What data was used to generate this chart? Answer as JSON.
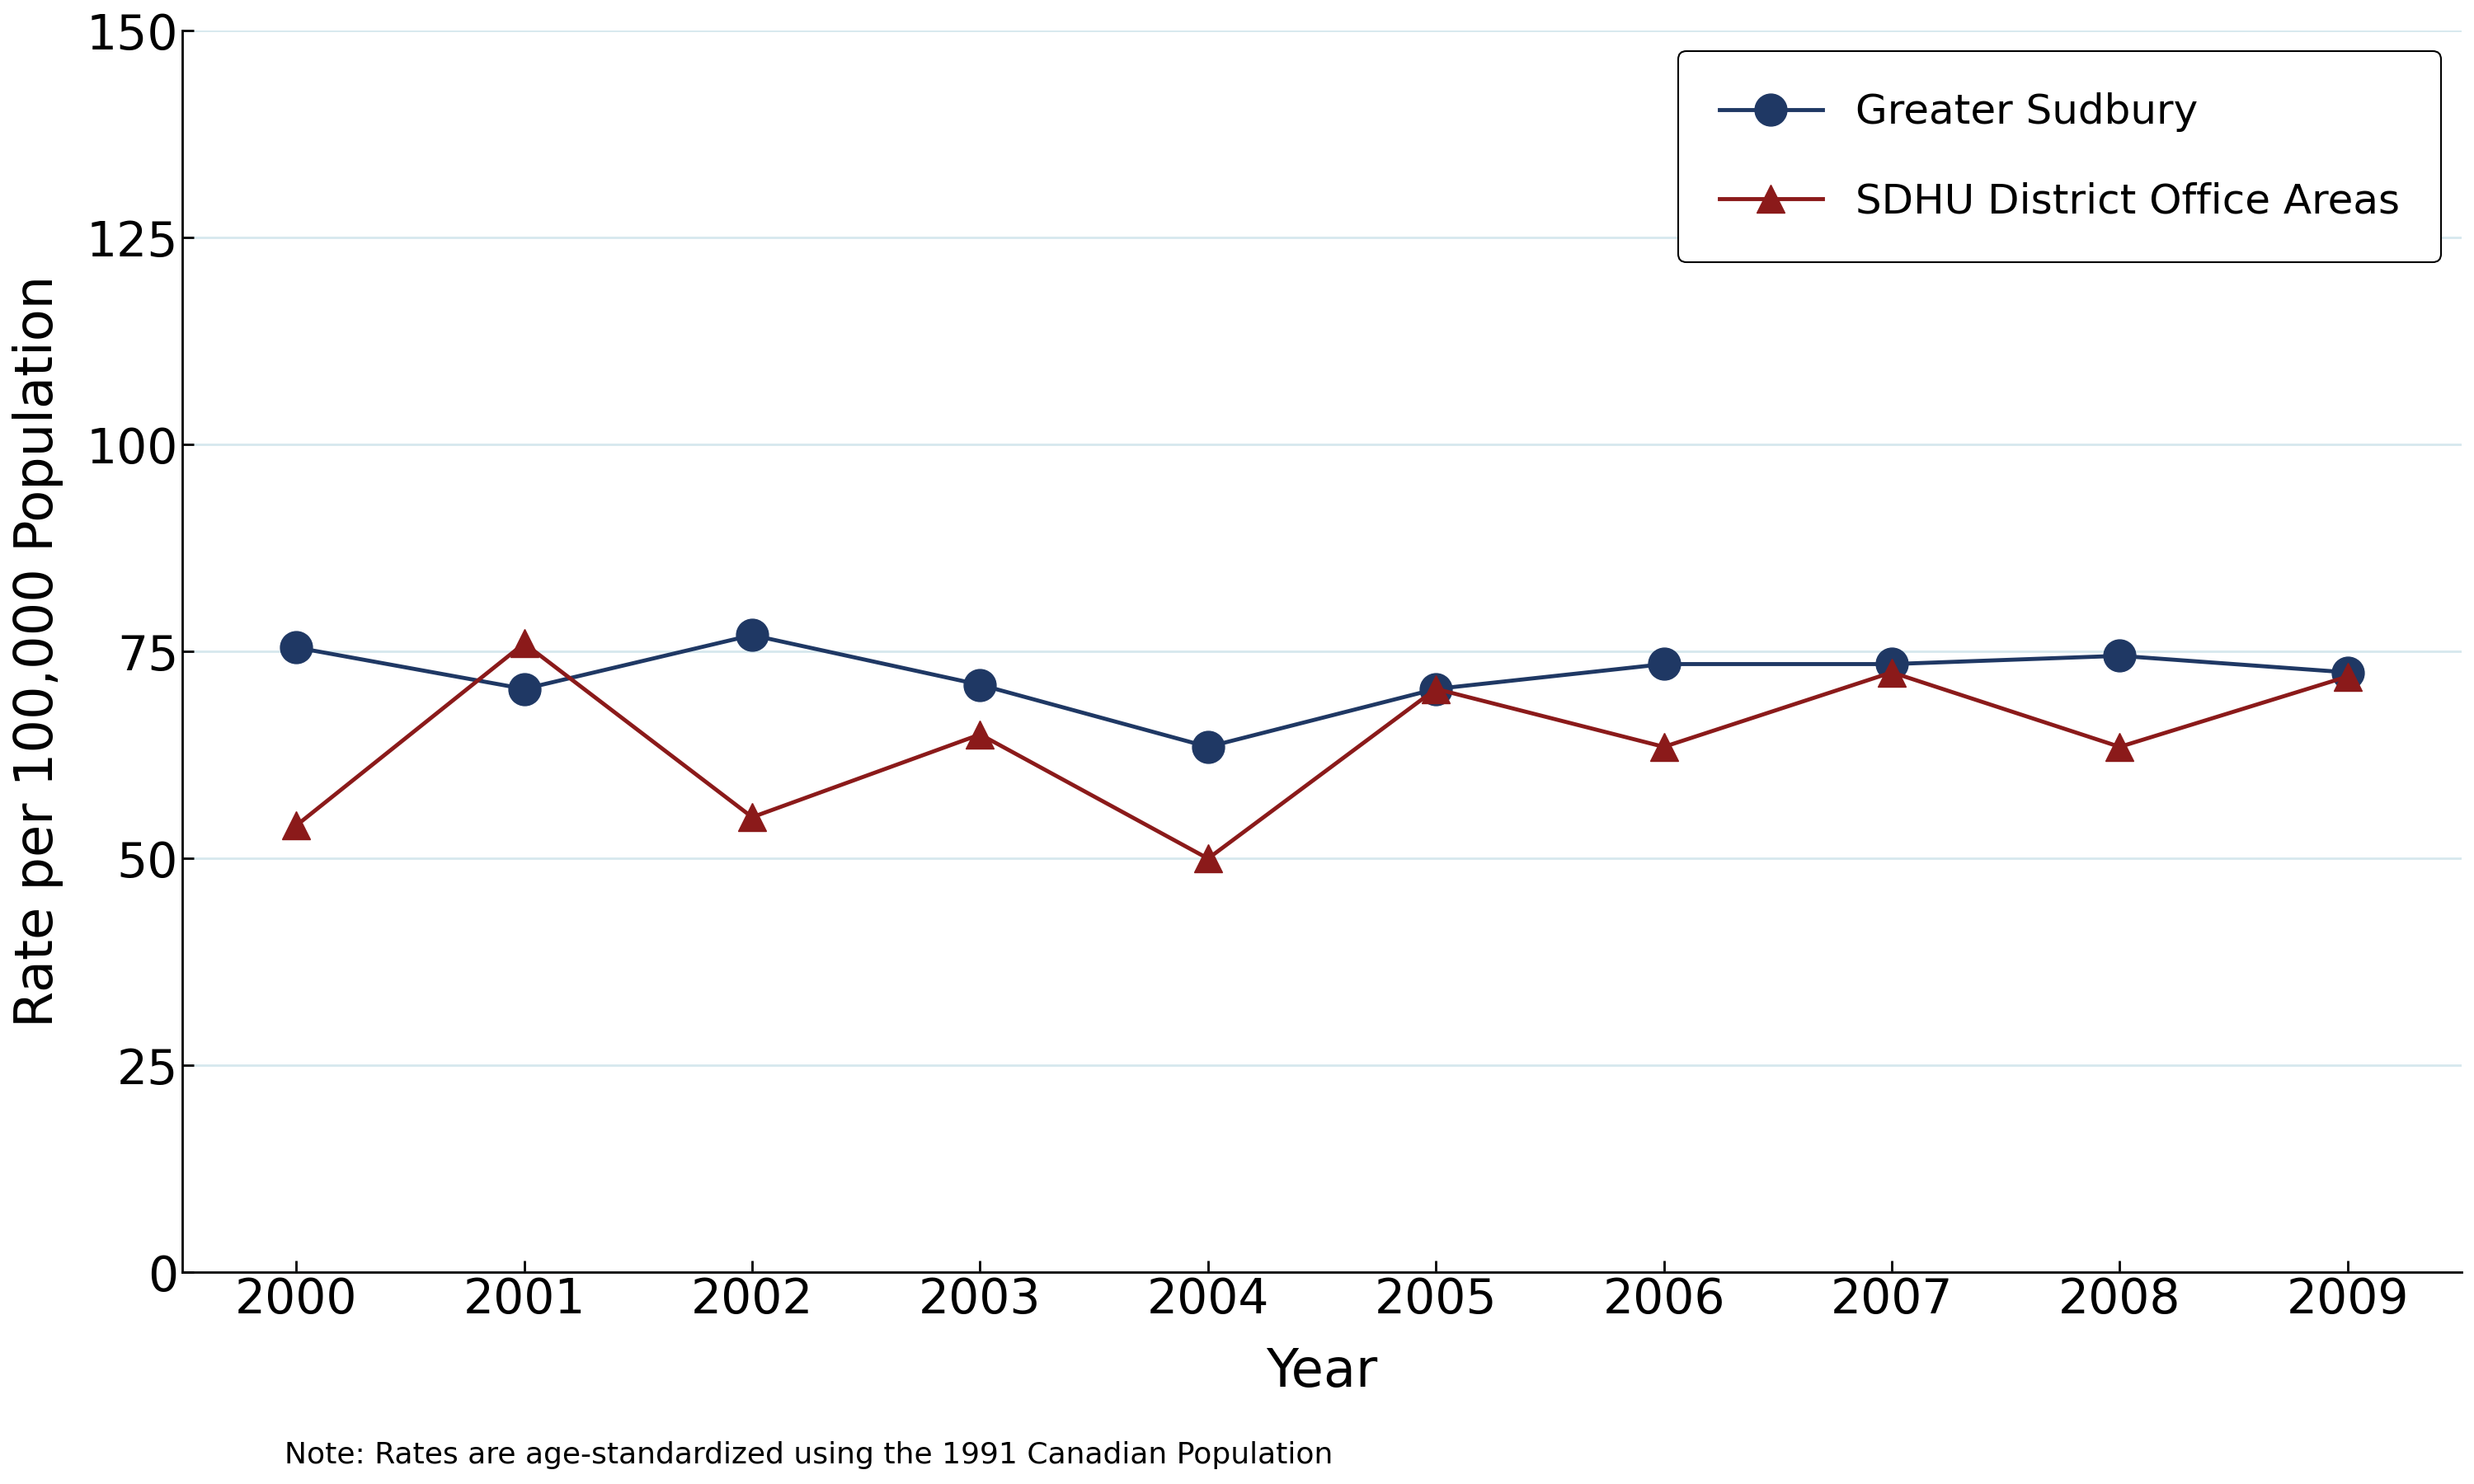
{
  "years": [
    2000,
    2001,
    2002,
    2003,
    2004,
    2005,
    2006,
    2007,
    2008,
    2009
  ],
  "greater_sudbury": [
    75.5,
    70.5,
    77.0,
    71.0,
    63.5,
    70.5,
    73.5,
    73.5,
    74.5,
    72.5
  ],
  "sdhu_district": [
    54.0,
    76.0,
    55.0,
    65.0,
    50.0,
    70.5,
    63.5,
    72.5,
    63.5,
    72.0
  ],
  "sudbury_color": "#1F3864",
  "sdhu_color": "#8B1A1A",
  "grid_color": "#D6E8EE",
  "ylabel": "Rate per 100,000 Population",
  "xlabel": "Year",
  "note": "Note: Rates are age-standardized using the 1991 Canadian Population",
  "legend_sudbury": "Greater Sudbury",
  "legend_sdhu": "SDHU District Office Areas",
  "ylim_min": 0,
  "ylim_max": 150,
  "yticks": [
    0,
    25,
    50,
    75,
    100,
    125,
    150
  ],
  "marker_size_sudbury": 28,
  "marker_size_sdhu": 24,
  "linewidth": 3.5,
  "fontsize_ticks": 42,
  "fontsize_labels": 46,
  "fontsize_legend": 36,
  "fontsize_note": 26
}
